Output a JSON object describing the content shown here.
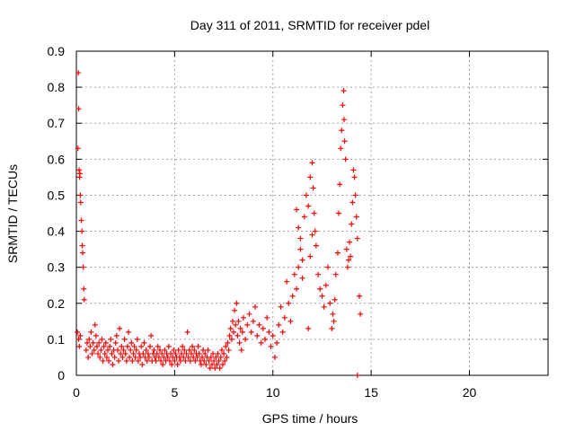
{
  "chart_data": {
    "type": "scatter",
    "title": "Day 311 of 2011, SRMTID for receiver pdel",
    "xlabel": "GPS time / hours",
    "ylabel": "SRMTID / TECUs",
    "xlim": [
      0,
      24
    ],
    "ylim": [
      0,
      0.9
    ],
    "grid": true,
    "marker": "+",
    "series_color": "#ff0000",
    "x_ticks": [
      0,
      5,
      10,
      15,
      20
    ],
    "y_ticks": [
      0,
      0.1,
      0.2,
      0.3,
      0.4,
      0.5,
      0.6,
      0.7,
      0.8,
      0.9
    ],
    "x_tick_labels": [
      "0",
      "5",
      "10",
      "15",
      "20"
    ],
    "y_tick_labels": [
      "0",
      "0.1",
      "0.2",
      "0.3",
      "0.4",
      "0.5",
      "0.6",
      "0.7",
      "0.8",
      "0.9"
    ],
    "series": [
      {
        "name": "SRMTID",
        "points": [
          [
            0.05,
            0.12
          ],
          [
            0.08,
            0.63
          ],
          [
            0.1,
            0.84
          ],
          [
            0.12,
            0.74
          ],
          [
            0.14,
            0.57
          ],
          [
            0.16,
            0.55
          ],
          [
            0.18,
            0.56
          ],
          [
            0.2,
            0.5
          ],
          [
            0.22,
            0.48
          ],
          [
            0.25,
            0.43
          ],
          [
            0.28,
            0.4
          ],
          [
            0.3,
            0.36
          ],
          [
            0.32,
            0.34
          ],
          [
            0.35,
            0.3
          ],
          [
            0.38,
            0.24
          ],
          [
            0.4,
            0.21
          ],
          [
            0.12,
            0.1
          ],
          [
            0.15,
            0.08
          ],
          [
            0.2,
            0.11
          ],
          [
            0.5,
            0.07
          ],
          [
            0.55,
            0.09
          ],
          [
            0.6,
            0.05
          ],
          [
            0.65,
            0.1
          ],
          [
            0.7,
            0.08
          ],
          [
            0.75,
            0.12
          ],
          [
            0.8,
            0.06
          ],
          [
            0.85,
            0.09
          ],
          [
            0.9,
            0.07
          ],
          [
            0.95,
            0.14
          ],
          [
            1.0,
            0.11
          ],
          [
            1.05,
            0.08
          ],
          [
            1.1,
            0.06
          ],
          [
            1.15,
            0.09
          ],
          [
            1.2,
            0.05
          ],
          [
            1.25,
            0.07
          ],
          [
            1.3,
            0.1
          ],
          [
            1.35,
            0.04
          ],
          [
            1.4,
            0.08
          ],
          [
            1.45,
            0.06
          ],
          [
            1.5,
            0.09
          ],
          [
            1.55,
            0.05
          ],
          [
            1.6,
            0.07
          ],
          [
            1.65,
            0.04
          ],
          [
            1.7,
            0.08
          ],
          [
            1.75,
            0.1
          ],
          [
            1.8,
            0.06
          ],
          [
            1.85,
            0.03
          ],
          [
            1.9,
            0.07
          ],
          [
            1.95,
            0.05
          ],
          [
            2.0,
            0.09
          ],
          [
            2.05,
            0.11
          ],
          [
            2.1,
            0.07
          ],
          [
            2.15,
            0.04
          ],
          [
            2.2,
            0.13
          ],
          [
            2.25,
            0.06
          ],
          [
            2.3,
            0.08
          ],
          [
            2.35,
            0.05
          ],
          [
            2.4,
            0.07
          ],
          [
            2.45,
            0.1
          ],
          [
            2.5,
            0.06
          ],
          [
            2.55,
            0.04
          ],
          [
            2.6,
            0.08
          ],
          [
            2.65,
            0.12
          ],
          [
            2.7,
            0.05
          ],
          [
            2.75,
            0.07
          ],
          [
            2.8,
            0.09
          ],
          [
            2.85,
            0.04
          ],
          [
            2.9,
            0.06
          ],
          [
            2.95,
            0.08
          ],
          [
            3.0,
            0.05
          ],
          [
            3.05,
            0.07
          ],
          [
            3.1,
            0.1
          ],
          [
            3.15,
            0.04
          ],
          [
            3.2,
            0.06
          ],
          [
            3.25,
            0.05
          ],
          [
            3.3,
            0.08
          ],
          [
            3.35,
            0.03
          ],
          [
            3.4,
            0.06
          ],
          [
            3.45,
            0.09
          ],
          [
            3.5,
            0.05
          ],
          [
            3.55,
            0.07
          ],
          [
            3.6,
            0.04
          ],
          [
            3.65,
            0.06
          ],
          [
            3.7,
            0.05
          ],
          [
            3.75,
            0.08
          ],
          [
            3.8,
            0.11
          ],
          [
            3.85,
            0.04
          ],
          [
            3.9,
            0.06
          ],
          [
            3.95,
            0.07
          ],
          [
            4.0,
            0.05
          ],
          [
            4.05,
            0.04
          ],
          [
            4.1,
            0.06
          ],
          [
            4.15,
            0.08
          ],
          [
            4.2,
            0.05
          ],
          [
            4.25,
            0.07
          ],
          [
            4.3,
            0.04
          ],
          [
            4.35,
            0.06
          ],
          [
            4.4,
            0.03
          ],
          [
            4.45,
            0.05
          ],
          [
            4.5,
            0.07
          ],
          [
            4.55,
            0.04
          ],
          [
            4.6,
            0.06
          ],
          [
            4.65,
            0.05
          ],
          [
            4.7,
            0.08
          ],
          [
            4.75,
            0.04
          ],
          [
            4.8,
            0.06
          ],
          [
            4.85,
            0.03
          ],
          [
            4.9,
            0.05
          ],
          [
            4.95,
            0.07
          ],
          [
            5.0,
            0.04
          ],
          [
            5.05,
            0.06
          ],
          [
            5.1,
            0.05
          ],
          [
            5.15,
            0.03
          ],
          [
            5.2,
            0.07
          ],
          [
            5.25,
            0.05
          ],
          [
            5.3,
            0.04
          ],
          [
            5.35,
            0.06
          ],
          [
            5.4,
            0.08
          ],
          [
            5.45,
            0.05
          ],
          [
            5.5,
            0.07
          ],
          [
            5.55,
            0.04
          ],
          [
            5.6,
            0.06
          ],
          [
            5.65,
            0.12
          ],
          [
            5.7,
            0.05
          ],
          [
            5.75,
            0.07
          ],
          [
            5.8,
            0.04
          ],
          [
            5.85,
            0.06
          ],
          [
            5.9,
            0.08
          ],
          [
            5.95,
            0.05
          ],
          [
            6.0,
            0.07
          ],
          [
            6.05,
            0.04
          ],
          [
            6.1,
            0.06
          ],
          [
            6.15,
            0.05
          ],
          [
            6.2,
            0.08
          ],
          [
            6.25,
            0.06
          ],
          [
            6.3,
            0.04
          ],
          [
            6.35,
            0.03
          ],
          [
            6.4,
            0.05
          ],
          [
            6.45,
            0.07
          ],
          [
            6.5,
            0.04
          ],
          [
            6.55,
            0.06
          ],
          [
            6.6,
            0.03
          ],
          [
            6.65,
            0.05
          ],
          [
            6.7,
            0.07
          ],
          [
            6.75,
            0.04
          ],
          [
            6.8,
            0.02
          ],
          [
            6.85,
            0.05
          ],
          [
            6.9,
            0.03
          ],
          [
            6.95,
            0.06
          ],
          [
            7.0,
            0.04
          ],
          [
            7.05,
            0.02
          ],
          [
            7.1,
            0.05
          ],
          [
            7.15,
            0.03
          ],
          [
            7.2,
            0.06
          ],
          [
            7.25,
            0.04
          ],
          [
            7.3,
            0.02
          ],
          [
            7.35,
            0.05
          ],
          [
            7.4,
            0.07
          ],
          [
            7.45,
            0.03
          ],
          [
            7.5,
            0.06
          ],
          [
            7.55,
            0.04
          ],
          [
            7.6,
            0.08
          ],
          [
            7.65,
            0.05
          ],
          [
            7.7,
            0.09
          ],
          [
            7.75,
            0.07
          ],
          [
            7.8,
            0.11
          ],
          [
            7.85,
            0.13
          ],
          [
            7.9,
            0.1
          ],
          [
            7.95,
            0.15
          ],
          [
            8.0,
            0.12
          ],
          [
            8.05,
            0.18
          ],
          [
            8.1,
            0.14
          ],
          [
            8.15,
            0.2
          ],
          [
            8.2,
            0.11
          ],
          [
            8.25,
            0.15
          ],
          [
            8.3,
            0.09
          ],
          [
            8.35,
            0.13
          ],
          [
            8.4,
            0.07
          ],
          [
            8.45,
            0.12
          ],
          [
            8.5,
            0.16
          ],
          [
            8.6,
            0.1
          ],
          [
            8.7,
            0.14
          ],
          [
            8.8,
            0.17
          ],
          [
            8.9,
            0.12
          ],
          [
            9.0,
            0.15
          ],
          [
            9.1,
            0.19
          ],
          [
            9.2,
            0.11
          ],
          [
            9.3,
            0.14
          ],
          [
            9.4,
            0.09
          ],
          [
            9.5,
            0.13
          ],
          [
            9.6,
            0.1
          ],
          [
            9.7,
            0.16
          ],
          [
            9.8,
            0.12
          ],
          [
            9.9,
            0.08
          ],
          [
            10.0,
            0.11
          ],
          [
            10.1,
            0.05
          ],
          [
            10.2,
            0.09
          ],
          [
            10.3,
            0.14
          ],
          [
            10.4,
            0.19
          ],
          [
            10.5,
            0.12
          ],
          [
            10.6,
            0.16
          ],
          [
            10.7,
            0.26
          ],
          [
            10.8,
            0.2
          ],
          [
            10.9,
            0.15
          ],
          [
            11.0,
            0.22
          ],
          [
            11.1,
            0.28
          ],
          [
            11.2,
            0.24
          ],
          [
            11.3,
            0.3
          ],
          [
            11.4,
            0.35
          ],
          [
            11.5,
            0.27
          ],
          [
            11.2,
            0.46
          ],
          [
            11.3,
            0.41
          ],
          [
            11.4,
            0.38
          ],
          [
            11.5,
            0.32
          ],
          [
            11.6,
            0.44
          ],
          [
            11.7,
            0.5
          ],
          [
            11.8,
            0.47
          ],
          [
            11.9,
            0.55
          ],
          [
            12.0,
            0.59
          ],
          [
            12.05,
            0.52
          ],
          [
            12.1,
            0.45
          ],
          [
            12.15,
            0.4
          ],
          [
            12.2,
            0.36
          ],
          [
            12.0,
            0.39
          ],
          [
            11.9,
            0.33
          ],
          [
            11.8,
            0.13
          ],
          [
            12.3,
            0.28
          ],
          [
            12.4,
            0.24
          ],
          [
            12.5,
            0.22
          ],
          [
            12.6,
            0.19
          ],
          [
            12.7,
            0.25
          ],
          [
            12.8,
            0.3
          ],
          [
            12.9,
            0.2
          ],
          [
            13.0,
            0.13
          ],
          [
            13.05,
            0.17
          ],
          [
            13.1,
            0.15
          ],
          [
            13.15,
            0.21
          ],
          [
            13.2,
            0.28
          ],
          [
            13.3,
            0.34
          ],
          [
            13.35,
            0.45
          ],
          [
            13.4,
            0.53
          ],
          [
            13.45,
            0.63
          ],
          [
            13.5,
            0.68
          ],
          [
            13.55,
            0.75
          ],
          [
            13.6,
            0.79
          ],
          [
            13.62,
            0.71
          ],
          [
            13.65,
            0.65
          ],
          [
            13.7,
            0.6
          ],
          [
            13.75,
            0.35
          ],
          [
            13.8,
            0.3
          ],
          [
            13.85,
            0.32
          ],
          [
            13.9,
            0.37
          ],
          [
            13.95,
            0.33
          ],
          [
            14.0,
            0.42
          ],
          [
            14.05,
            0.48
          ],
          [
            14.1,
            0.57
          ],
          [
            14.15,
            0.55
          ],
          [
            14.2,
            0.5
          ],
          [
            14.25,
            0.44
          ],
          [
            14.3,
            0.38
          ],
          [
            14.4,
            0.22
          ],
          [
            14.45,
            0.17
          ],
          [
            14.3,
            0.0
          ]
        ]
      }
    ]
  }
}
